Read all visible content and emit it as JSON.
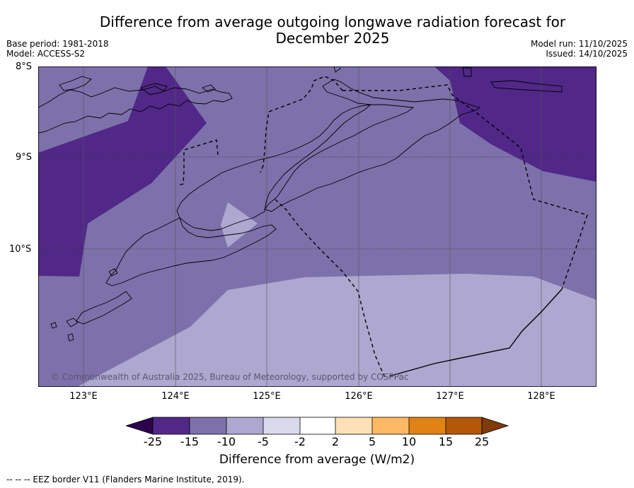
{
  "header": {
    "title_line1": "Difference from average outgoing longwave radiation forecast for",
    "title_line2": "December 2025",
    "base_period": "Base period: 1981-2018",
    "model": "Model: ACCESS-S2",
    "model_run": "Model run: 11/10/2025",
    "issued": "Issued: 14/10/2025"
  },
  "map": {
    "lat_labels": [
      "8°S",
      "9°S",
      "10°S"
    ],
    "lon_labels": [
      "123°E",
      "124°E",
      "125°E",
      "126°E",
      "127°E",
      "128°E"
    ],
    "copyright": "© Commonwealth of Australia 2025, Bureau of Meteorology, supported by COSPPac",
    "colors": {
      "dark_purple": "#512887",
      "mid_purple": "#7d71ab",
      "light_purple": "#aea7cf",
      "coast": "#000000"
    }
  },
  "colorbar": {
    "tick_labels": [
      "-25",
      "-15",
      "-10",
      "-5",
      "-2",
      "2",
      "5",
      "10",
      "15",
      "25"
    ],
    "colors": [
      "#2d004b",
      "#512887",
      "#7d71ab",
      "#aea7cf",
      "#d8d9eb",
      "#ffffff",
      "#fee0b6",
      "#fdb863",
      "#e08214",
      "#b35806",
      "#7f3b08"
    ],
    "title": "Difference from average (W/m2)"
  },
  "footer": {
    "legend_text": "--  --  -- EEZ border V11 (Flanders Marine Institute, 2019)."
  }
}
